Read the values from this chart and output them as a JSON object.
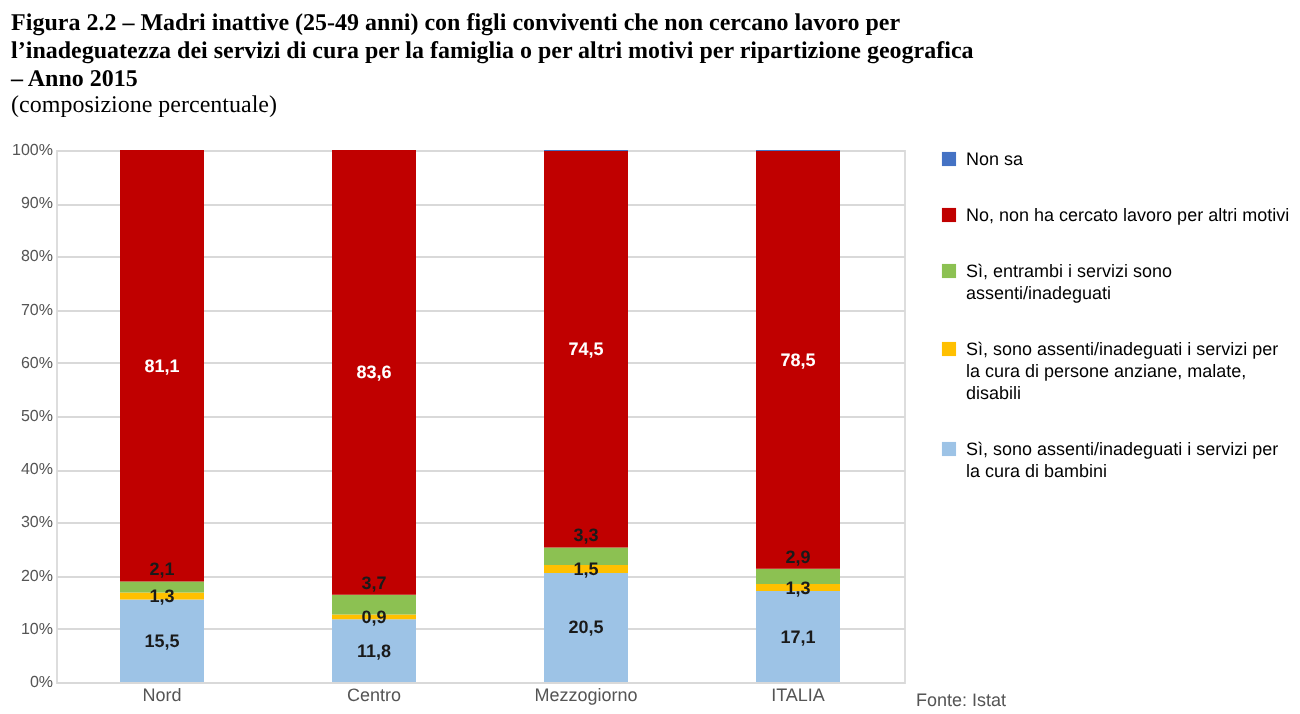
{
  "chart_data": {
    "type": "bar",
    "stacked": true,
    "title": "Figura 2.2 – Madri inattive (25-49 anni) con figli conviventi che non cercano lavoro per l’inadeguatezza dei servizi di cura per la famiglia o per altri motivi per ripartizione geografica – Anno 2015",
    "subtitle": "(composizione percentuale)",
    "categories": [
      "Nord",
      "Centro",
      "Mezzogiorno",
      "ITALIA"
    ],
    "series": [
      {
        "name": "Sì, sono assenti/inadeguati i servizi per la cura di bambini",
        "color": "#9dc3e6",
        "values": [
          15.5,
          11.8,
          20.5,
          17.1
        ],
        "value_labels": [
          "15,5",
          "11,8",
          "20,5",
          "17,1"
        ]
      },
      {
        "name": "Sì, sono assenti/inadeguati i servizi per la cura di persone anziane, malate, disabili",
        "color": "#ffc000",
        "values": [
          1.3,
          0.9,
          1.5,
          1.3
        ],
        "value_labels": [
          "1,3",
          "0,9",
          "1,5",
          "1,3"
        ]
      },
      {
        "name": "Sì, entrambi i servizi sono assenti/inadeguati",
        "color": "#8cc152",
        "values": [
          2.1,
          3.7,
          3.3,
          2.9
        ],
        "value_labels": [
          "2,1",
          "3,7",
          "3,3",
          "2,9"
        ]
      },
      {
        "name": "No, non ha cercato lavoro per altri motivi",
        "color": "#c00000",
        "values": [
          81.1,
          83.6,
          74.5,
          78.5
        ],
        "value_labels": [
          "81,1",
          "83,6",
          "74,5",
          "78,5"
        ]
      },
      {
        "name": "Non sa",
        "color": "#4472c4",
        "values": [
          0,
          0,
          0.2,
          0.2
        ],
        "value_labels": [
          null,
          null,
          null,
          null
        ]
      }
    ],
    "ylim": [
      0,
      100
    ],
    "yticks": [
      {
        "value": 0,
        "label": "0%"
      },
      {
        "value": 10,
        "label": "10%"
      },
      {
        "value": 20,
        "label": "20%"
      },
      {
        "value": 30,
        "label": "30%"
      },
      {
        "value": 40,
        "label": "40%"
      },
      {
        "value": 50,
        "label": "50%"
      },
      {
        "value": 60,
        "label": "60%"
      },
      {
        "value": 70,
        "label": "70%"
      },
      {
        "value": 80,
        "label": "80%"
      },
      {
        "value": 90,
        "label": "90%"
      },
      {
        "value": 100,
        "label": "100%"
      }
    ],
    "grid": "y",
    "legend": "right",
    "annotations": [
      "Fonte: Istat"
    ]
  }
}
